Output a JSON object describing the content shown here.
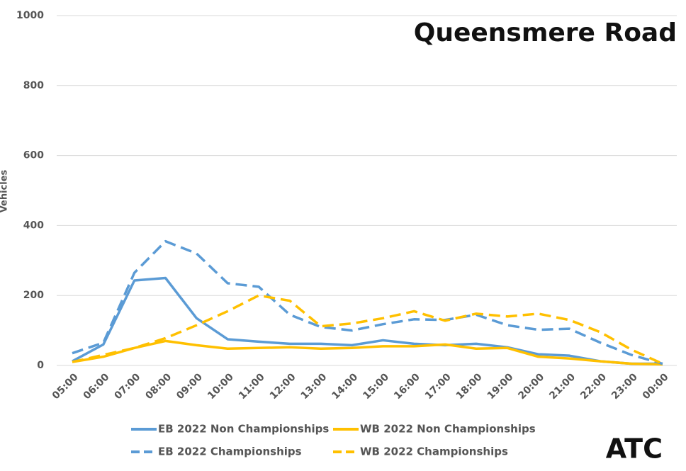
{
  "chart_data": {
    "type": "line",
    "title": "Queensmere Road",
    "annotation": "ATC",
    "y_label": "Vehicles",
    "categories": [
      "05:00",
      "06:00",
      "07:00",
      "08:00",
      "09:00",
      "10:00",
      "11:00",
      "12:00",
      "13:00",
      "14:00",
      "15:00",
      "16:00",
      "17:00",
      "18:00",
      "19:00",
      "20:00",
      "21:00",
      "22:00",
      "23:00",
      "00:00"
    ],
    "series": [
      {
        "name": "EB 2022 Non Championships",
        "color": "#5b9bd5",
        "dashed": false,
        "values": [
          12,
          60,
          243,
          250,
          135,
          75,
          68,
          62,
          62,
          58,
          72,
          62,
          58,
          62,
          52,
          32,
          28,
          12,
          5,
          5
        ]
      },
      {
        "name": "WB 2022 Non Championships",
        "color": "#ffc000",
        "dashed": false,
        "values": [
          10,
          25,
          50,
          70,
          58,
          48,
          50,
          52,
          48,
          50,
          55,
          55,
          60,
          48,
          50,
          25,
          20,
          12,
          5,
          3
        ]
      },
      {
        "name": "EB 2022 Championships",
        "color": "#5b9bd5",
        "dashed": true,
        "values": [
          35,
          65,
          265,
          355,
          320,
          235,
          225,
          145,
          110,
          100,
          118,
          132,
          130,
          145,
          115,
          102,
          105,
          65,
          30,
          5
        ]
      },
      {
        "name": "WB 2022 Championships",
        "color": "#ffc000",
        "dashed": true,
        "values": [
          10,
          30,
          50,
          78,
          115,
          155,
          200,
          185,
          112,
          120,
          135,
          155,
          128,
          148,
          140,
          148,
          130,
          95,
          45,
          5
        ]
      }
    ],
    "ylim": [
      0,
      1000
    ],
    "yticks": [
      0,
      200,
      400,
      600,
      800,
      1000
    ],
    "grid": true
  }
}
